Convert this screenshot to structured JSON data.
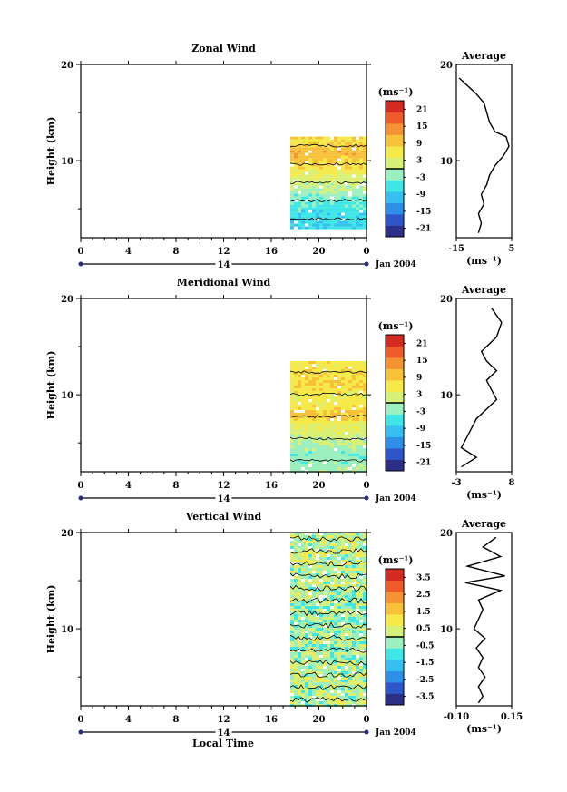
{
  "figure": {
    "x_axis_label": "Local Time",
    "date_label": "Jan 2004",
    "day_label": "14",
    "units_label": "(ms⁻¹)",
    "avg_title": "Average",
    "y_axis_label": "Height (km)"
  },
  "chart_data": [
    {
      "type": "heatmap",
      "title": "Zonal Wind",
      "ylabel": "Height (km)",
      "xlabel": "Local Time",
      "x_ticks": [
        "0",
        "4",
        "8",
        "12",
        "16",
        "20",
        "0"
      ],
      "y_ticks": [
        "20",
        "10"
      ],
      "xlim": [
        0,
        24
      ],
      "ylim": [
        2,
        20
      ],
      "data_extent": {
        "x": [
          17.6,
          24
        ],
        "y": [
          3,
          12.5
        ]
      },
      "colorbar": {
        "ticks": [
          "21",
          "15",
          "9",
          "3",
          "-3",
          "-9",
          "-15",
          "-21"
        ],
        "range": [
          -24,
          24
        ],
        "units": "(ms⁻¹)"
      },
      "field_levels": [
        {
          "height": 12,
          "value": 7
        },
        {
          "height": 11,
          "value": 11
        },
        {
          "height": 10,
          "value": 9
        },
        {
          "height": 9,
          "value": 5
        },
        {
          "height": 8,
          "value": 2
        },
        {
          "height": 7,
          "value": -1
        },
        {
          "height": 6,
          "value": -4
        },
        {
          "height": 5,
          "value": -6
        },
        {
          "height": 4,
          "value": -7
        },
        {
          "height": 3,
          "value": -8
        }
      ],
      "average_profile": {
        "xlim": [
          -15,
          5
        ],
        "x_ticks": [
          "-15",
          "5"
        ],
        "y_ticks": [
          "20",
          "10"
        ],
        "xlabel": "(ms⁻¹)",
        "points": [
          [
            -14,
            18.6
          ],
          [
            -8,
            17
          ],
          [
            -5,
            16
          ],
          [
            -3,
            14
          ],
          [
            -1,
            13
          ],
          [
            3,
            12.5
          ],
          [
            4,
            11.5
          ],
          [
            2,
            10.5
          ],
          [
            -1,
            9.5
          ],
          [
            -3,
            8.5
          ],
          [
            -4,
            7.5
          ],
          [
            -6,
            6.5
          ],
          [
            -5,
            5.5
          ],
          [
            -7,
            4.5
          ],
          [
            -6,
            3.5
          ],
          [
            -7,
            2.5
          ]
        ]
      }
    },
    {
      "type": "heatmap",
      "title": "Meridional Wind",
      "ylabel": "Height (km)",
      "xlabel": "Local Time",
      "x_ticks": [
        "0",
        "4",
        "8",
        "12",
        "16",
        "20",
        "0"
      ],
      "y_ticks": [
        "20",
        "10"
      ],
      "xlim": [
        0,
        24
      ],
      "ylim": [
        2,
        20
      ],
      "data_extent": {
        "x": [
          17.6,
          24
        ],
        "y": [
          2,
          13.5
        ]
      },
      "colorbar": {
        "ticks": [
          "21",
          "15",
          "9",
          "3",
          "-3",
          "-9",
          "-15",
          "-21"
        ],
        "range": [
          -24,
          24
        ],
        "units": "(ms⁻¹)"
      },
      "field_levels": [
        {
          "height": 13,
          "value": 6
        },
        {
          "height": 12,
          "value": 8
        },
        {
          "height": 11,
          "value": 7
        },
        {
          "height": 10,
          "value": 5
        },
        {
          "height": 9,
          "value": 6
        },
        {
          "height": 8,
          "value": 10
        },
        {
          "height": 7,
          "value": 4
        },
        {
          "height": 6,
          "value": 2
        },
        {
          "height": 5,
          "value": 0
        },
        {
          "height": 4,
          "value": -3
        },
        {
          "height": 3,
          "value": -2
        },
        {
          "height": 2,
          "value": -1
        }
      ],
      "average_profile": {
        "xlim": [
          -3,
          8
        ],
        "x_ticks": [
          "-3",
          "8"
        ],
        "y_ticks": [
          "20",
          "10"
        ],
        "xlabel": "(ms⁻¹)",
        "points": [
          [
            4,
            19
          ],
          [
            6,
            17.5
          ],
          [
            5,
            16
          ],
          [
            2,
            14.5
          ],
          [
            3,
            13.5
          ],
          [
            5,
            12.5
          ],
          [
            3,
            11.5
          ],
          [
            4,
            10.5
          ],
          [
            5,
            9.5
          ],
          [
            3,
            8.5
          ],
          [
            1,
            7.5
          ],
          [
            0,
            6.5
          ],
          [
            -1,
            5.5
          ],
          [
            -2,
            4.5
          ],
          [
            1,
            3.5
          ],
          [
            -2,
            2.5
          ]
        ]
      }
    },
    {
      "type": "heatmap",
      "title": "Vertical Wind",
      "ylabel": "Height (km)",
      "xlabel": "Local Time",
      "x_ticks": [
        "0",
        "4",
        "8",
        "12",
        "16",
        "20",
        "0"
      ],
      "y_ticks": [
        "20",
        "10"
      ],
      "xlim": [
        0,
        24
      ],
      "ylim": [
        2,
        20
      ],
      "data_extent": {
        "x": [
          17.6,
          24
        ],
        "y": [
          2,
          20
        ]
      },
      "colorbar": {
        "ticks": [
          "3.5",
          "2.5",
          "1.5",
          "0.5",
          "-0.5",
          "-1.5",
          "-2.5",
          "-3.5"
        ],
        "range": [
          -4,
          4
        ],
        "units": "(ms⁻¹)"
      },
      "field_levels": [
        {
          "height": 19,
          "value": 0.1
        },
        {
          "height": 17,
          "value": 0.2
        },
        {
          "height": 15,
          "value": 0.0
        },
        {
          "height": 13,
          "value": -0.2
        },
        {
          "height": 11,
          "value": -0.3
        },
        {
          "height": 9,
          "value": -0.1
        },
        {
          "height": 7,
          "value": -0.2
        },
        {
          "height": 5,
          "value": 0.1
        },
        {
          "height": 3,
          "value": -0.1
        }
      ],
      "average_profile": {
        "xlim": [
          -0.1,
          0.15
        ],
        "x_ticks": [
          "-0.10",
          "0.15"
        ],
        "y_ticks": [
          "20",
          "10"
        ],
        "xlabel": "(ms⁻¹)",
        "points": [
          [
            0.08,
            19.5
          ],
          [
            0.02,
            18.5
          ],
          [
            0.1,
            17.5
          ],
          [
            -0.05,
            16.5
          ],
          [
            0.12,
            15.5
          ],
          [
            -0.06,
            14.8
          ],
          [
            0.1,
            14
          ],
          [
            0.0,
            13
          ],
          [
            0.02,
            12
          ],
          [
            0.0,
            11
          ],
          [
            -0.02,
            10
          ],
          [
            0.03,
            9
          ],
          [
            -0.01,
            8
          ],
          [
            0.02,
            7
          ],
          [
            0.0,
            6
          ],
          [
            0.03,
            5
          ],
          [
            0.0,
            4
          ],
          [
            0.02,
            3
          ],
          [
            0.0,
            2.3
          ]
        ]
      }
    }
  ]
}
